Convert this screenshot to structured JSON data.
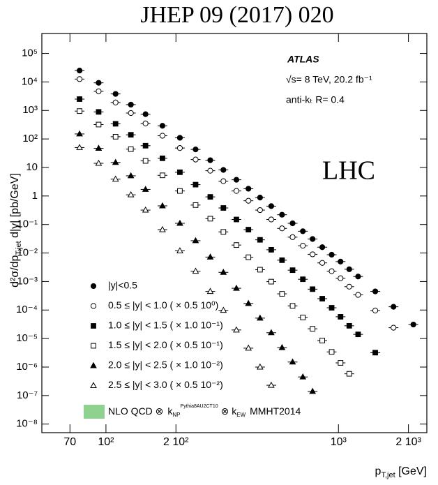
{
  "chart_data": {
    "type": "scatter",
    "title": "JHEP 09 (2017) 020",
    "watermark": "LHC",
    "experiment": "ATLAS",
    "energy_label": "√s= 8 TeV, 20.2 fb⁻¹",
    "jet_label": "anti-kₜ R= 0.4",
    "y_label": "d²σ/dp",
    "y_label_sub": "T,jet",
    "y_label_rest": " d|y| [pb/GeV]",
    "x_label": "p",
    "x_label_sub": "T,jet",
    "x_label_rest": " [GeV]",
    "log_x": true,
    "log_y": true,
    "xlim": [
      53,
      2400
    ],
    "ylim": [
      5e-09,
      500000.0
    ],
    "xticks": [
      70,
      {
        "value": 100,
        "label": "10²"
      },
      {
        "value": 200,
        "label": "2 10²"
      },
      {
        "value": 1000,
        "label": "10³"
      },
      {
        "value": 2000,
        "label": "2 10³"
      }
    ],
    "yticks": [
      {
        "value": 100000.0,
        "label": "10⁵"
      },
      {
        "value": 10000.0,
        "label": "10⁴"
      },
      {
        "value": 1000.0,
        "label": "10³"
      },
      {
        "value": 100.0,
        "label": "10²"
      },
      10,
      1,
      {
        "value": 0.1,
        "label": "10⁻¹"
      },
      {
        "value": 0.01,
        "label": "10⁻²"
      },
      {
        "value": 0.001,
        "label": "10⁻³"
      },
      {
        "value": 0.0001,
        "label": "10⁻⁴"
      },
      {
        "value": 1e-05,
        "label": "10⁻⁵"
      },
      {
        "value": 1e-06,
        "label": "10⁻⁶"
      },
      {
        "value": 1e-07,
        "label": "10⁻⁷"
      },
      {
        "value": 1e-08,
        "label": "10⁻⁸"
      }
    ],
    "theory_color": "#8fd18f",
    "theory_legend": {
      "label": "NLO QCD ⊗",
      "k1": "k",
      "k1_sub": "NP",
      "k1_sup": "Pythia8AU2CT10",
      "k2": "⊗ k",
      "k2_sub": "EW",
      "pdf": "MMHT2014"
    },
    "series": [
      {
        "name": "|y|<0.5",
        "marker": "circle-filled",
        "color": "#000000",
        "x": [
          77,
          93,
          110,
          128,
          148,
          175,
          208,
          243,
          281,
          320,
          364,
          410,
          460,
          514,
          572,
          635,
          703,
          774,
          852,
          935,
          1021,
          1113,
          1215,
          1440,
          1725,
          2100
        ],
        "values": [
          25000.0,
          9300.0,
          3800.0,
          1600.0,
          740.0,
          290.0,
          110.0,
          43,
          18,
          8.2,
          3.7,
          1.8,
          0.88,
          0.44,
          0.22,
          0.11,
          0.058,
          0.031,
          0.016,
          0.0087,
          0.005,
          0.0027,
          0.0015,
          0.00045,
          0.00013,
          3.1e-05
        ]
      },
      {
        "name": "0.5 ≤ |y| < 1.0 ( × 0.5 10⁰)",
        "marker": "circle-open",
        "color": "#000000",
        "x": [
          77,
          93,
          110,
          128,
          148,
          175,
          208,
          243,
          281,
          320,
          364,
          410,
          460,
          514,
          572,
          635,
          703,
          774,
          852,
          935,
          1021,
          1113,
          1215,
          1440,
          1725
        ],
        "values": [
          12600.0,
          4700.0,
          1900.0,
          810.0,
          350.0,
          130.0,
          48,
          19,
          7.7,
          3.3,
          1.5,
          0.68,
          0.32,
          0.15,
          0.073,
          0.036,
          0.018,
          0.009,
          0.0045,
          0.0023,
          0.0013,
          0.00066,
          0.00034,
          9.6e-05,
          2.4e-05
        ]
      },
      {
        "name": "1.0 ≤ |y| < 1.5 ( × 1.0 10⁻¹)",
        "marker": "square-filled",
        "color": "#000000",
        "x": [
          77,
          93,
          110,
          128,
          148,
          175,
          208,
          243,
          281,
          320,
          364,
          410,
          460,
          514,
          572,
          635,
          703,
          774,
          852,
          935,
          1021,
          1113,
          1215,
          1440
        ],
        "values": [
          2500.0,
          890.0,
          340.0,
          140.0,
          58,
          21,
          6.8,
          2.5,
          0.93,
          0.38,
          0.15,
          0.066,
          0.029,
          0.013,
          0.0056,
          0.0025,
          0.0012,
          0.00054,
          0.00025,
          0.00012,
          5.8e-05,
          2.8e-05,
          1.4e-05,
          3.2e-06
        ]
      },
      {
        "name": "1.5 ≤ |y| < 2.0 ( × 0.5 10⁻¹)",
        "marker": "square-open",
        "color": "#000000",
        "x": [
          77,
          93,
          110,
          128,
          148,
          175,
          208,
          243,
          281,
          320,
          364,
          410,
          460,
          514,
          572,
          635,
          703,
          774,
          852,
          935,
          1021,
          1113
        ],
        "values": [
          950.0,
          320.0,
          120.0,
          44,
          17,
          5.3,
          1.5,
          0.48,
          0.16,
          0.055,
          0.019,
          0.0071,
          0.0026,
          0.00099,
          0.00037,
          0.00014,
          5.5e-05,
          2.2e-05,
          8.5e-06,
          3.4e-06,
          1.4e-06,
          5.8e-07
        ]
      },
      {
        "name": "2.0 ≤ |y| < 2.5 ( × 1.0 10⁻²)",
        "marker": "triangle-filled",
        "color": "#000000",
        "x": [
          77,
          93,
          110,
          128,
          148,
          175,
          208,
          243,
          281,
          320,
          364,
          410,
          460,
          514,
          572,
          635,
          703,
          774
        ],
        "values": [
          150.0,
          47,
          15,
          5.1,
          1.7,
          0.45,
          0.11,
          0.027,
          0.0072,
          0.0021,
          0.00058,
          0.00017,
          5.2e-05,
          1.6e-05,
          4.8e-06,
          1.5e-06,
          4.5e-07,
          1.4e-07
        ]
      },
      {
        "name": "2.5 ≤ |y| < 3.0 ( × 0.5 10⁻²)",
        "marker": "triangle-open",
        "color": "#000000",
        "x": [
          77,
          93,
          110,
          128,
          148,
          175,
          208,
          243,
          281,
          320,
          364,
          410,
          460,
          514
        ],
        "values": [
          50,
          14,
          3.9,
          1.1,
          0.32,
          0.066,
          0.012,
          0.0023,
          0.00045,
          9.8e-05,
          2e-05,
          4.6e-06,
          1e-06,
          2.3e-07
        ]
      }
    ]
  }
}
